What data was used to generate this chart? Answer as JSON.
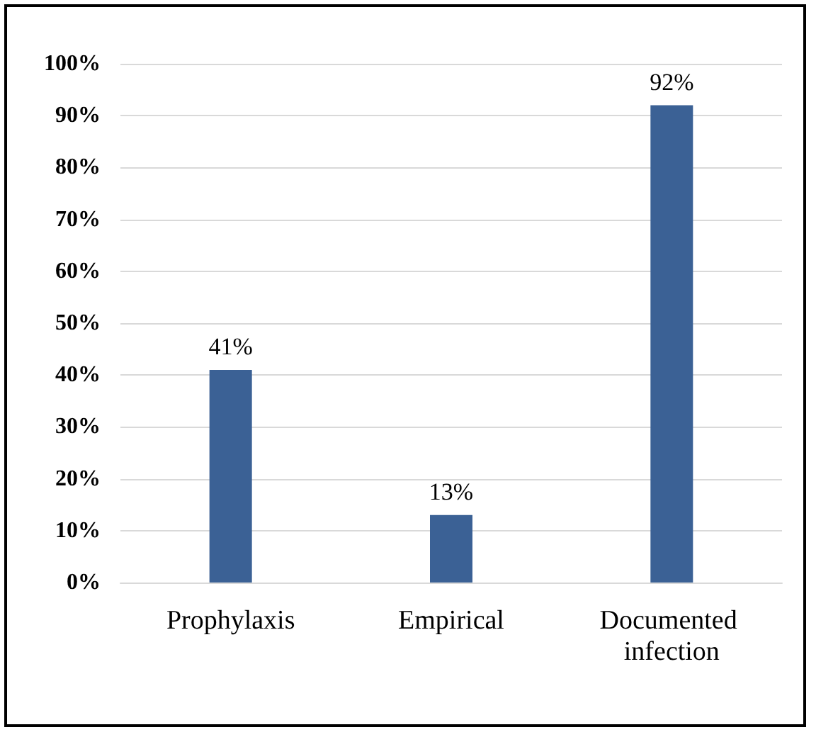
{
  "chart_data": {
    "type": "bar",
    "categories": [
      "Prophylaxis",
      "Empirical",
      "Documented infection"
    ],
    "values": [
      41,
      13,
      92
    ],
    "value_labels": [
      "41%",
      "13%",
      "92%"
    ],
    "color": "#3b6195",
    "ylim": [
      0,
      100
    ],
    "yticks": [
      {
        "value": 0,
        "label": "0%"
      },
      {
        "value": 10,
        "label": "10%"
      },
      {
        "value": 20,
        "label": "20%"
      },
      {
        "value": 30,
        "label": "30%"
      },
      {
        "value": 40,
        "label": "40%"
      },
      {
        "value": 50,
        "label": "50%"
      },
      {
        "value": 60,
        "label": "60%"
      },
      {
        "value": 70,
        "label": "70%"
      },
      {
        "value": 80,
        "label": "80%"
      },
      {
        "value": 90,
        "label": "90%"
      },
      {
        "value": 100,
        "label": "100%"
      }
    ],
    "grid": "y"
  }
}
